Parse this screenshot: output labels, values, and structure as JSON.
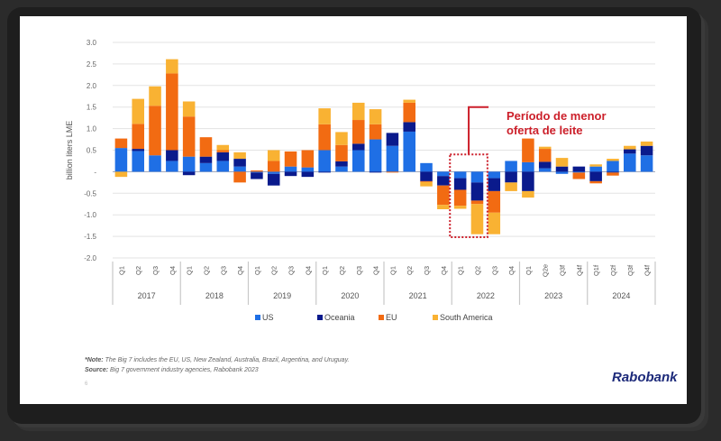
{
  "chart_data": {
    "type": "bar",
    "stacked": true,
    "title": "",
    "ylabel": "billion liters LME",
    "xlabel": "",
    "ylim": [
      -2.0,
      3.0
    ],
    "yticks": [
      3.0,
      2.5,
      2.0,
      1.5,
      1.0,
      0.5,
      0,
      -0.5,
      -1.0,
      -1.5,
      -2.0
    ],
    "ytick_labels": [
      "3.0",
      "2.5",
      "2.0",
      "1.5",
      "1.0",
      "0.5",
      "-",
      "-0.5",
      "-1.0",
      "-1.5",
      "-2.0"
    ],
    "grid": true,
    "legend_position": "bottom",
    "categories": [
      "Q1",
      "Q2",
      "Q3",
      "Q4",
      "Q1",
      "Q2",
      "Q3",
      "Q4",
      "Q1",
      "Q2",
      "Q3",
      "Q4",
      "Q1",
      "Q2",
      "Q3",
      "Q4",
      "Q1",
      "Q2",
      "Q3",
      "Q4",
      "Q1",
      "Q2",
      "Q3",
      "Q4",
      "Q1",
      "Q2e",
      "Q3f",
      "Q4f",
      "Q1f",
      "Q2f",
      "Q3f",
      "Q4f"
    ],
    "groups": [
      {
        "label": "2017",
        "count": 4
      },
      {
        "label": "2018",
        "count": 4
      },
      {
        "label": "2019",
        "count": 4
      },
      {
        "label": "2020",
        "count": 4
      },
      {
        "label": "2021",
        "count": 4
      },
      {
        "label": "2022",
        "count": 4
      },
      {
        "label": "2023",
        "count": 4
      },
      {
        "label": "2024",
        "count": 4
      }
    ],
    "series": [
      {
        "name": "US",
        "color": "#1f6fe5",
        "values": [
          0.55,
          0.48,
          0.38,
          0.25,
          0.35,
          0.2,
          0.25,
          0.12,
          -0.02,
          -0.05,
          0.12,
          0.1,
          0.5,
          0.12,
          0.5,
          0.75,
          0.6,
          0.93,
          0.2,
          -0.1,
          -0.15,
          -0.25,
          -0.15,
          0.25,
          0.22,
          0.08,
          -0.05,
          -0.02,
          0.12,
          0.25,
          0.42,
          0.38
        ]
      },
      {
        "name": "Oceania",
        "color": "#0a1a8c",
        "values": [
          0.0,
          0.05,
          0.0,
          0.25,
          -0.08,
          0.15,
          0.2,
          0.18,
          -0.15,
          -0.27,
          -0.1,
          -0.12,
          -0.02,
          0.12,
          0.15,
          -0.02,
          0.3,
          0.22,
          -0.22,
          -0.22,
          -0.27,
          -0.42,
          -0.3,
          -0.25,
          -0.45,
          0.15,
          0.12,
          0.12,
          -0.22,
          -0.02,
          0.1,
          0.22
        ]
      },
      {
        "name": "EU",
        "color": "#f26b12",
        "values": [
          0.22,
          0.58,
          1.15,
          1.78,
          0.93,
          0.45,
          0.05,
          -0.25,
          0.03,
          0.25,
          0.35,
          0.4,
          0.6,
          0.38,
          0.55,
          0.35,
          -0.02,
          0.45,
          -0.02,
          -0.45,
          -0.37,
          -0.08,
          -0.5,
          0.0,
          0.55,
          0.3,
          0.0,
          -0.15,
          -0.05,
          -0.07,
          0.0,
          0.0
        ]
      },
      {
        "name": "South America",
        "color": "#f9b233",
        "values": [
          -0.12,
          0.58,
          0.45,
          0.33,
          0.35,
          0.0,
          0.12,
          0.15,
          0.0,
          0.25,
          0.0,
          0.0,
          0.37,
          0.3,
          0.4,
          0.35,
          0.0,
          0.07,
          -0.1,
          -0.1,
          -0.07,
          -0.7,
          -0.5,
          -0.2,
          -0.15,
          0.05,
          0.2,
          0.0,
          0.05,
          0.05,
          0.08,
          0.1
        ]
      }
    ],
    "annotation": {
      "text_line1": "Período de menor",
      "text_line2": "oferta de leite",
      "color": "#cc1f2a",
      "highlight_range": [
        "2021 Q4",
        "2022 Q2"
      ]
    }
  },
  "footer": {
    "note_label": "*Note:",
    "note_text": " The Big 7 includes the EU, US, New Zealand, Australia, Brazil, Argentina, and Uruguay.",
    "source_label": "Source:",
    "source_text": " Big 7 government industry agencies, Rabobank 2023",
    "page_number": "6",
    "logo": "Rabobank"
  }
}
